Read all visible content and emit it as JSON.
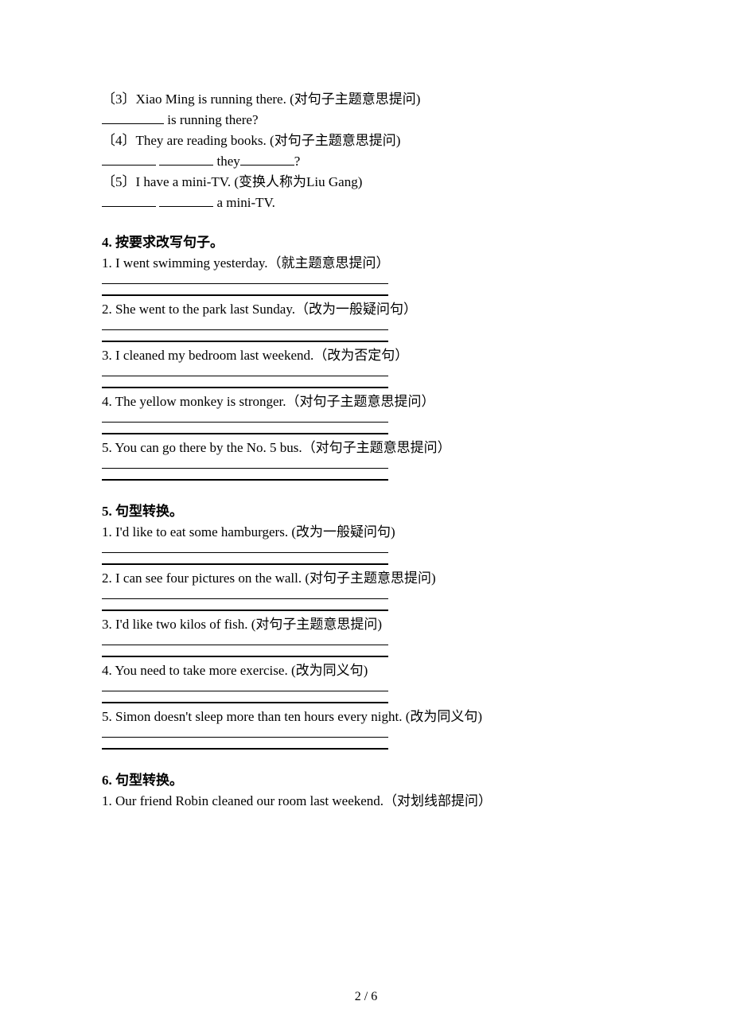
{
  "q3_items": {
    "i3": {
      "prefix": "〔3〕",
      "sentence": "Xiao Ming is running there.",
      "instruction": "(对句子主题意思提问)",
      "fill_after": " is running there?"
    },
    "i4": {
      "prefix": "〔4〕",
      "sentence": "They are reading books.",
      "instruction": "(对句子主题意思提问)",
      "fill_mid": " they",
      "fill_end": "?"
    },
    "i5": {
      "prefix": "〔5〕",
      "sentence": "I have a mini-TV.",
      "instruction": "(变换人称为Liu Gang)",
      "fill_after": " a mini-TV."
    }
  },
  "section4": {
    "heading": "4.  按要求改写句子。",
    "items": [
      {
        "n": "1.",
        "text": "I went swimming yesterday.",
        "instr": "（就主题意思提问）"
      },
      {
        "n": "2.",
        "text": "She went to the park last Sunday.",
        "instr": "（改为一般疑问句）"
      },
      {
        "n": "3.",
        "text": "I cleaned my bedroom last weekend.",
        "instr": "（改为否定句）"
      },
      {
        "n": "4.",
        "text": "The yellow monkey is stronger.",
        "instr": "（对句子主题意思提问）"
      },
      {
        "n": "5.",
        "text": "You can go there by the No. 5 bus.",
        "instr": "（对句子主题意思提问）"
      }
    ]
  },
  "section5": {
    "heading": "5.  句型转换。",
    "items": [
      {
        "n": "1.",
        "text": "I'd like to eat some hamburgers.",
        "instr": "(改为一般疑问句)"
      },
      {
        "n": "2.",
        "text": "I can see four pictures on the wall.",
        "instr": "(对句子主题意思提问)"
      },
      {
        "n": "3.",
        "text": "I'd like two kilos of fish.",
        "instr": "(对句子主题意思提问)"
      },
      {
        "n": "4.",
        "text": "You need to take more exercise.",
        "instr": "(改为同义句)"
      },
      {
        "n": "5.",
        "text": "Simon doesn't sleep more than ten hours every night.",
        "instr": "(改为同义句)"
      }
    ]
  },
  "section6": {
    "heading": "6.  句型转换。",
    "items": [
      {
        "n": "1.",
        "text": "Our friend Robin cleaned our room last weekend.",
        "instr": "（对划线部提问）"
      }
    ]
  },
  "footer": "2 / 6"
}
